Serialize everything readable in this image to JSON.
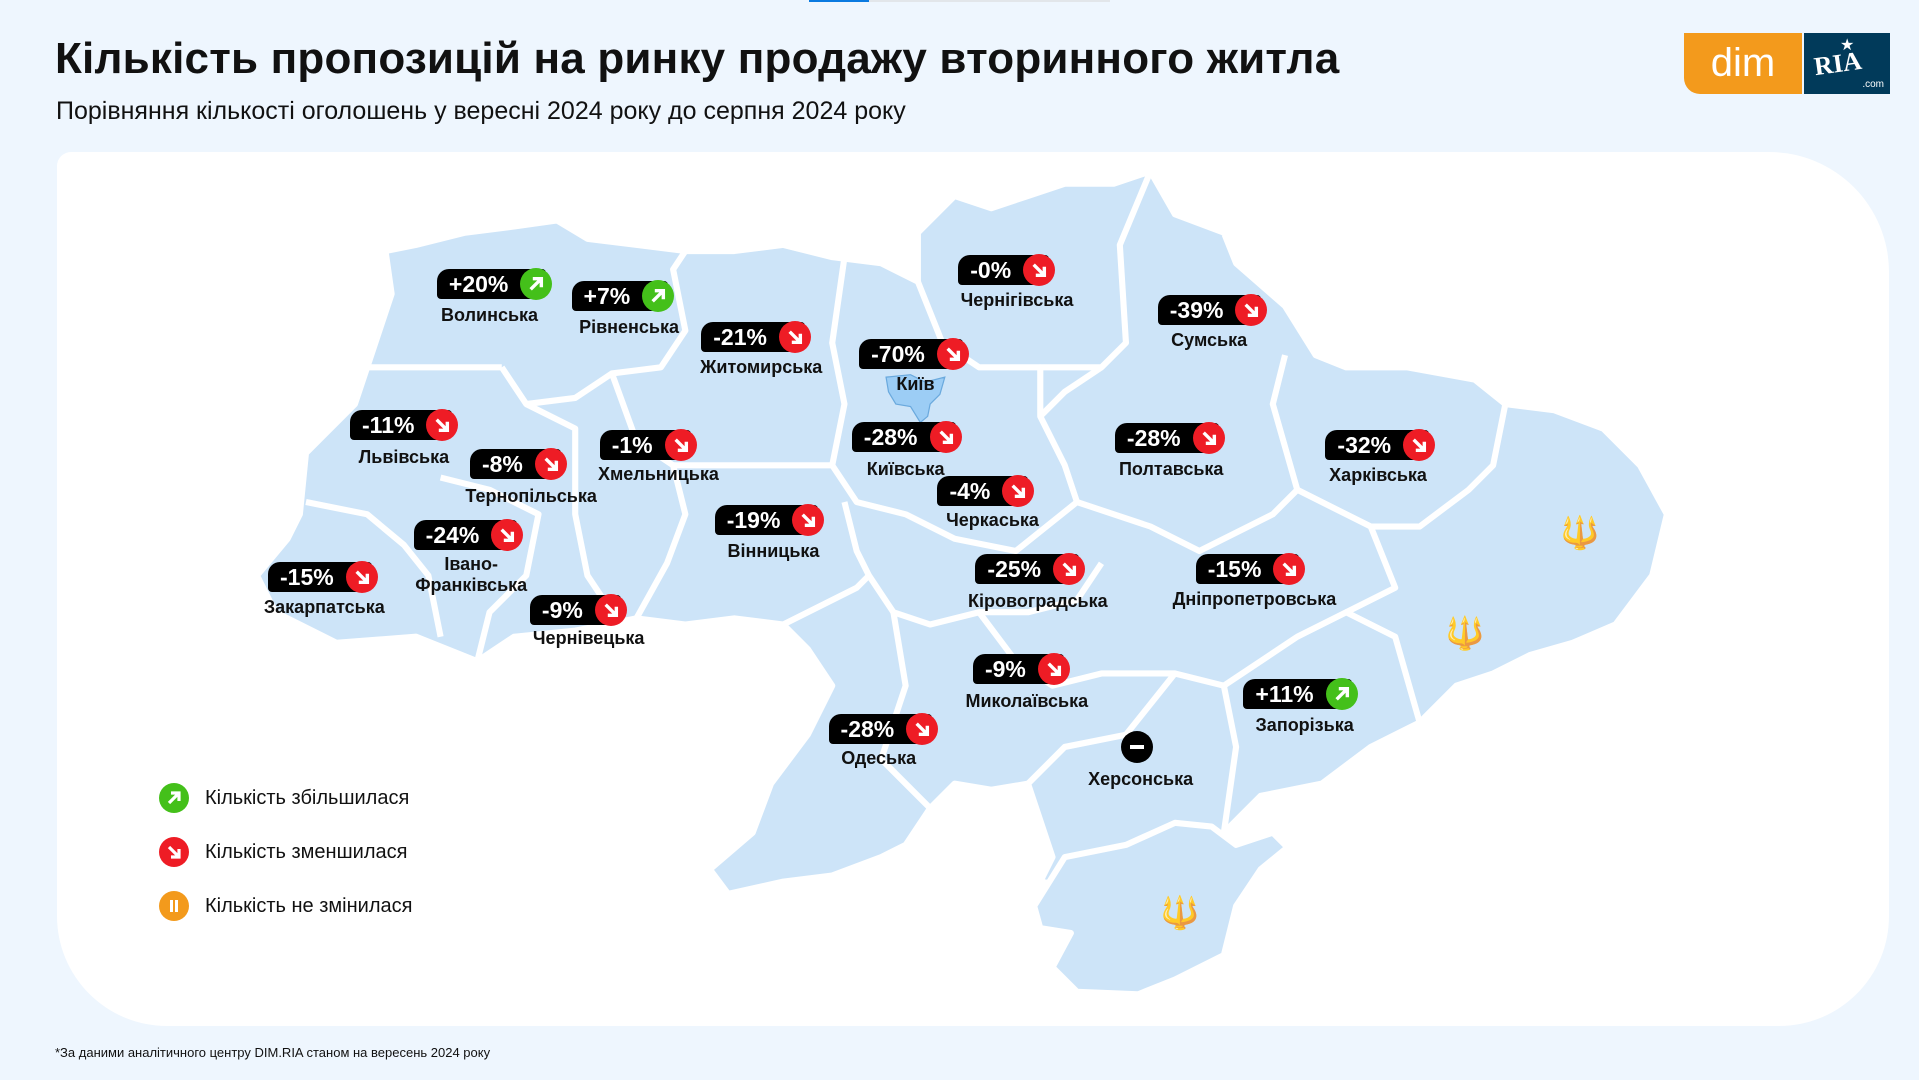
{
  "header": {
    "title": "Кількість пропозицій на ринку продажу вторинного житла",
    "subtitle": "Порівняння кількості оголошень у вересні 2024 року до серпня 2024 року",
    "progress_percent": 20
  },
  "logo": {
    "dim": "dim",
    "ria": "RIA",
    "com": ".com"
  },
  "colors": {
    "increase": "#44c01a",
    "decrease": "#ee1c25",
    "unchanged": "#f39a1c",
    "map_fill": "#cde4f8",
    "background": "#eef6fe"
  },
  "regions": [
    {
      "name": "Волинська",
      "change": "+20%",
      "trend": "up"
    },
    {
      "name": "Рівненська",
      "change": "+7%",
      "trend": "up"
    },
    {
      "name": "Житомирська",
      "change": "-21%",
      "trend": "down"
    },
    {
      "name": "Чернігівська",
      "change": "-0%",
      "trend": "down"
    },
    {
      "name": "Сумська",
      "change": "-39%",
      "trend": "down"
    },
    {
      "name": "Київ",
      "change": "-70%",
      "trend": "down"
    },
    {
      "name": "Львівська",
      "change": "-11%",
      "trend": "down"
    },
    {
      "name": "Тернопільська",
      "change": "-8%",
      "trend": "down"
    },
    {
      "name": "Хмельницька",
      "change": "-1%",
      "trend": "down"
    },
    {
      "name": "Київська",
      "change": "-28%",
      "trend": "down"
    },
    {
      "name": "Полтавська",
      "change": "-28%",
      "trend": "down"
    },
    {
      "name": "Харківська",
      "change": "-32%",
      "trend": "down"
    },
    {
      "name": "Черкаська",
      "change": "-4%",
      "trend": "down"
    },
    {
      "name": "Вінницька",
      "change": "-19%",
      "trend": "down"
    },
    {
      "name": "Івано-Франківська",
      "change": "-24%",
      "trend": "down"
    },
    {
      "name": "Закарпатська",
      "change": "-15%",
      "trend": "down"
    },
    {
      "name": "Чернівецька",
      "change": "-9%",
      "trend": "down"
    },
    {
      "name": "Кіровоградська",
      "change": "-25%",
      "trend": "down"
    },
    {
      "name": "Дніпропетровська",
      "change": "-15%",
      "trend": "down"
    },
    {
      "name": "Миколаївська",
      "change": "-9%",
      "trend": "down"
    },
    {
      "name": "Запорізька",
      "change": "+11%",
      "trend": "up"
    },
    {
      "name": "Одеська",
      "change": "-28%",
      "trend": "down"
    },
    {
      "name": "Херсонська",
      "change": null,
      "trend": "none"
    }
  ],
  "legend": {
    "increase": "Кількість збільшилася",
    "decrease": "Кількість зменшилася",
    "unchanged": "Кількість не змінилася"
  },
  "footnote": "*За даними аналітичного центру DIM.RIA станом на вересень 2024 року"
}
